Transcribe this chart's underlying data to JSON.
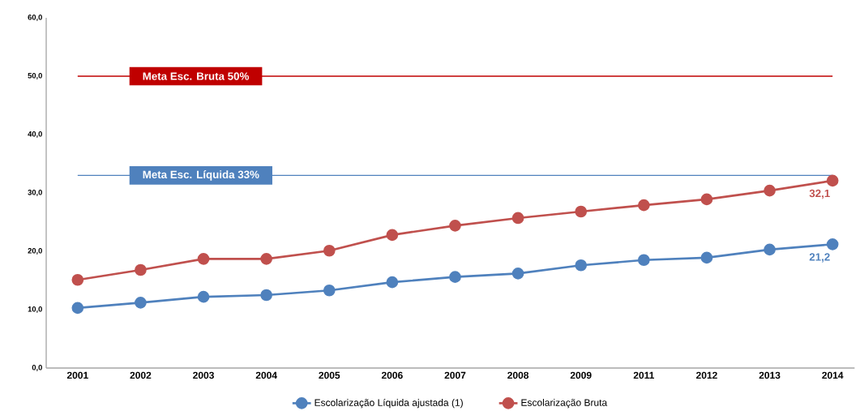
{
  "chart_data": {
    "type": "line",
    "categories": [
      "2001",
      "2002",
      "2003",
      "2004",
      "2005",
      "2006",
      "2007",
      "2008",
      "2009",
      "2011",
      "2012",
      "2013",
      "2014"
    ],
    "ylim": [
      0,
      60
    ],
    "yticks": [
      {
        "value": 0,
        "label": "0,0"
      },
      {
        "value": 10,
        "label": "10,0"
      },
      {
        "value": 20,
        "label": "20,0"
      },
      {
        "value": 30,
        "label": "30,0"
      },
      {
        "value": 40,
        "label": "40,0"
      },
      {
        "value": 50,
        "label": "50,0"
      },
      {
        "value": 60,
        "label": "60,0"
      }
    ],
    "series": [
      {
        "name": "Escolarização Líquida ajustada (1)",
        "color": "#4f81bd",
        "values": [
          10.3,
          11.2,
          12.2,
          12.5,
          13.3,
          14.7,
          15.6,
          16.2,
          17.6,
          18.5,
          18.9,
          20.3,
          21.2
        ],
        "value_labels": [
          null,
          null,
          null,
          null,
          null,
          null,
          null,
          null,
          null,
          null,
          null,
          null,
          "21,2"
        ]
      },
      {
        "name": "Escolarização Bruta",
        "color": "#c0504d",
        "values": [
          15.1,
          16.8,
          18.7,
          18.7,
          20.1,
          22.8,
          24.4,
          25.7,
          26.8,
          27.9,
          28.9,
          30.4,
          32.1
        ],
        "value_labels": [
          null,
          null,
          null,
          null,
          null,
          null,
          null,
          null,
          null,
          null,
          null,
          null,
          "32,1"
        ]
      }
    ],
    "ref_lines": [
      {
        "axis": "y",
        "value": 50,
        "label": "Meta Esc. Bruta 50%",
        "color": "#c00000"
      },
      {
        "axis": "y",
        "value": 33,
        "label": "Meta Esc. Líquida 33%",
        "color": "#4f81bd"
      }
    ],
    "grid": false,
    "legend": "bottom",
    "marker": "circle",
    "line_style": "solid"
  }
}
